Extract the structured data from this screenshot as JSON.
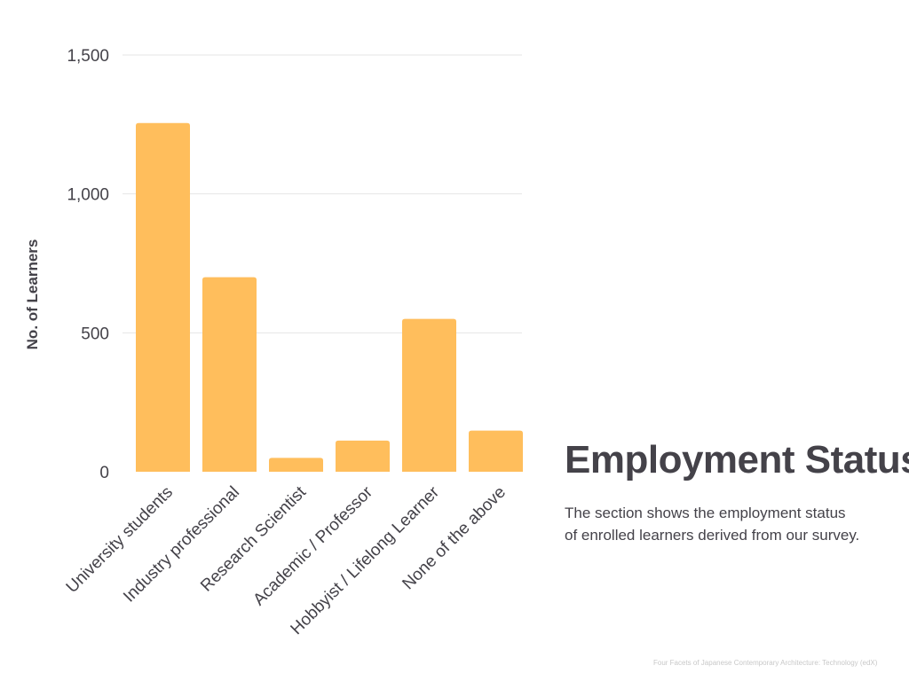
{
  "chart_data": {
    "type": "bar",
    "categories": [
      "University students",
      "Industry professional",
      "Research Scientist",
      "Academic / Professor",
      "Hobbyist / Lifelong Learner",
      "None of the above"
    ],
    "values": [
      1255,
      700,
      50,
      112,
      550,
      148
    ],
    "ylabel": "No. of Learners",
    "xlabel": "",
    "ylim": [
      0,
      1500
    ],
    "yticks": [
      0,
      500,
      1000,
      1500
    ],
    "ytick_labels": [
      "0",
      "500",
      "1,000",
      "1,500"
    ],
    "grid": true,
    "bar_color": "#ffbe5c",
    "grid_color": "#e6e6e6"
  },
  "side": {
    "title": "Employment Status",
    "desc_line1": "The section shows the employment status",
    "desc_line2": "of enrolled learners derived from our survey."
  },
  "footer": {
    "source": "Four Facets of Japanese Contemporary Architecture: Technology (edX)"
  },
  "colors": {
    "text": "#444249",
    "bar": "#ffbe5c",
    "footer": "#c8c8c8"
  }
}
